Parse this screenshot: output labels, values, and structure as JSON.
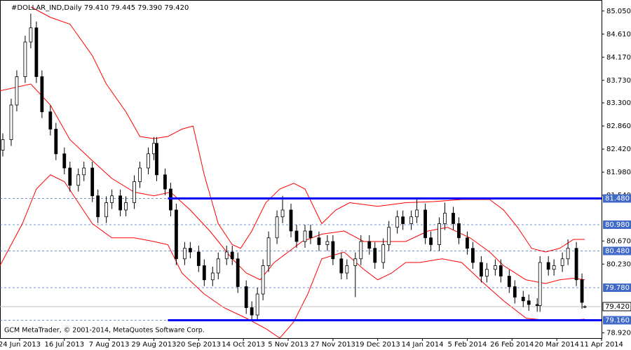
{
  "chart_data": {
    "type": "candlestick",
    "title": "#DOLLAR_IND,Daily  79.410 79.445 79.390 79.420",
    "footer": "GCM MetaTrader, © 2001-2014, MetaQuotes Software Corp.",
    "x": [
      -6,
      -3,
      -1,
      2,
      4,
      6,
      8,
      11,
      13,
      16,
      18,
      21,
      23,
      26,
      28,
      31,
      33,
      36,
      38,
      41,
      43,
      46,
      48,
      49,
      52,
      54,
      56,
      59,
      61,
      64,
      66,
      69,
      71,
      74,
      76,
      78,
      81,
      83,
      85,
      87,
      89,
      92,
      94,
      97,
      99,
      102,
      104,
      107,
      110,
      112,
      115,
      117,
      120,
      122,
      125,
      127,
      130,
      132,
      135,
      137,
      140,
      142,
      145,
      147,
      150,
      152,
      155,
      157,
      160,
      162,
      165,
      167,
      170,
      172,
      175,
      177,
      180,
      182,
      185,
      186,
      189,
      191,
      194,
      196,
      199,
      201,
      202
    ],
    "open": [
      82.4,
      82.6,
      83.26,
      83.8,
      84.46,
      84.73,
      83.8,
      83.13,
      82.8,
      82.33,
      82.06,
      81.73,
      81.93,
      82.06,
      81.53,
      81.13,
      81.4,
      81.53,
      81.26,
      81.4,
      81.8,
      82.06,
      82.33,
      82.53,
      81.93,
      81.66,
      81.26,
      80.33,
      80.53,
      80.46,
      80.2,
      79.93,
      80.06,
      80.33,
      80.46,
      80.33,
      79.8,
      79.4,
      79.26,
      79.66,
      80.2,
      80.73,
      81.13,
      81.26,
      80.86,
      80.66,
      80.86,
      80.73,
      80.6,
      80.66,
      80.33,
      80.06,
      80.2,
      80.33,
      80.66,
      80.53,
      80.26,
      80.6,
      80.93,
      81.13,
      81.0,
      81.13,
      81.26,
      80.73,
      80.6,
      81.0,
      81.2,
      81.0,
      80.73,
      80.53,
      80.26,
      80.0,
      80.13,
      80.2,
      80.0,
      79.8,
      79.6,
      79.53,
      79.46,
      79.44,
      80.26,
      80.13,
      80.2,
      80.33,
      80.53,
      79.93,
      79.41
    ],
    "high": [
      82.72,
      83.38,
      83.92,
      84.58,
      85.0,
      84.85,
      83.92,
      83.25,
      82.92,
      82.45,
      82.18,
      82.05,
      82.18,
      82.18,
      81.65,
      81.52,
      81.65,
      81.65,
      81.52,
      81.92,
      82.18,
      82.45,
      82.65,
      82.65,
      82.05,
      81.78,
      81.38,
      80.65,
      80.65,
      80.58,
      80.32,
      80.18,
      80.45,
      80.58,
      80.58,
      80.45,
      79.92,
      79.52,
      79.78,
      80.32,
      80.85,
      81.25,
      81.53,
      81.38,
      80.98,
      80.98,
      80.98,
      80.85,
      80.78,
      80.78,
      80.45,
      80.32,
      80.45,
      80.78,
      80.78,
      80.65,
      80.72,
      81.05,
      81.25,
      81.25,
      81.25,
      81.48,
      81.38,
      80.85,
      81.12,
      81.4,
      81.32,
      81.12,
      80.85,
      80.65,
      80.38,
      80.25,
      80.32,
      80.32,
      80.12,
      79.92,
      79.72,
      79.65,
      79.58,
      80.38,
      80.38,
      80.32,
      80.45,
      80.7,
      80.65,
      80.05,
      79.445
    ],
    "low": [
      82.28,
      82.48,
      83.14,
      83.68,
      84.34,
      83.68,
      83.01,
      82.68,
      82.21,
      81.94,
      81.61,
      81.61,
      81.81,
      81.41,
      81.01,
      81.01,
      81.28,
      81.14,
      81.14,
      81.28,
      81.68,
      81.94,
      82.21,
      81.81,
      81.54,
      81.14,
      80.21,
      80.21,
      80.34,
      80.08,
      79.81,
      79.81,
      79.94,
      80.21,
      80.21,
      79.68,
      79.28,
      79.14,
      79.14,
      79.54,
      80.08,
      80.61,
      81.01,
      80.74,
      80.54,
      80.54,
      80.61,
      80.48,
      80.48,
      80.21,
      79.94,
      79.94,
      79.6,
      80.21,
      80.41,
      80.14,
      80.14,
      80.48,
      80.81,
      80.88,
      80.88,
      81.01,
      80.61,
      80.48,
      80.48,
      80.88,
      80.88,
      80.61,
      80.41,
      80.14,
      79.88,
      79.88,
      80.01,
      79.88,
      79.68,
      79.48,
      79.41,
      79.34,
      79.32,
      79.32,
      80.01,
      80.01,
      80.08,
      80.21,
      79.81,
      79.38,
      79.39
    ],
    "close": [
      82.6,
      83.26,
      83.8,
      84.46,
      84.73,
      83.8,
      83.13,
      82.8,
      82.33,
      82.06,
      81.73,
      81.93,
      82.06,
      81.53,
      81.13,
      81.4,
      81.53,
      81.26,
      81.4,
      81.8,
      82.06,
      82.33,
      82.53,
      81.93,
      81.66,
      81.26,
      80.33,
      80.53,
      80.46,
      80.2,
      79.93,
      80.06,
      80.33,
      80.46,
      80.33,
      79.8,
      79.4,
      79.26,
      79.66,
      80.2,
      80.73,
      81.13,
      81.26,
      80.86,
      80.66,
      80.86,
      80.73,
      80.6,
      80.66,
      80.33,
      80.06,
      80.2,
      80.33,
      80.66,
      80.53,
      80.26,
      80.6,
      80.93,
      81.13,
      81.0,
      81.13,
      81.26,
      80.73,
      80.6,
      81.0,
      81.2,
      81.0,
      80.73,
      80.53,
      80.26,
      80.0,
      80.13,
      80.2,
      80.0,
      79.8,
      79.6,
      79.53,
      79.46,
      79.44,
      80.26,
      80.13,
      80.2,
      80.33,
      80.53,
      79.93,
      79.5,
      79.42
    ],
    "bands": [
      {
        "color": "#ff0000",
        "x": [
          4,
          11,
          18,
          26,
          31,
          38,
          43,
          48,
          53,
          58,
          62,
          66,
          71,
          76,
          79,
          83,
          88,
          93,
          98,
          102,
          105,
          108,
          113,
          118,
          128,
          138,
          148,
          158,
          168,
          173,
          178,
          183,
          188,
          193,
          198,
          202
        ],
        "values": [
          85.13,
          84.93,
          84.8,
          84.2,
          83.66,
          83.13,
          82.66,
          82.62,
          82.66,
          82.8,
          82.86,
          81.93,
          81.0,
          80.6,
          80.53,
          80.86,
          81.4,
          81.66,
          81.77,
          81.66,
          81.33,
          81.0,
          81.26,
          81.4,
          81.33,
          81.4,
          81.42,
          81.46,
          81.46,
          81.26,
          80.93,
          80.53,
          80.46,
          80.53,
          80.7,
          80.7
        ]
      },
      {
        "color": "#ff0000",
        "x": [
          -7,
          4,
          11,
          18,
          26,
          33,
          41,
          48,
          54,
          61,
          68,
          76,
          81,
          86,
          91,
          96,
          101,
          108,
          116,
          123,
          131,
          138,
          146,
          153,
          161,
          168,
          173,
          181,
          188,
          193,
          198,
          202
        ],
        "values": [
          83.53,
          83.66,
          83.26,
          82.6,
          82.2,
          81.86,
          81.6,
          81.53,
          81.6,
          81.26,
          80.86,
          80.33,
          80.06,
          79.93,
          80.26,
          80.46,
          80.66,
          80.8,
          80.86,
          80.66,
          80.66,
          80.66,
          80.86,
          80.93,
          80.73,
          80.46,
          80.2,
          79.93,
          79.86,
          79.93,
          79.96,
          79.93
        ]
      },
      {
        "color": "#ff0000",
        "x": [
          -7,
          1,
          6,
          11,
          16,
          21,
          26,
          33,
          41,
          48,
          53,
          58,
          66,
          73,
          81,
          88,
          93,
          98,
          103,
          108,
          116,
          123,
          128,
          133,
          138,
          143,
          151,
          158,
          166,
          173,
          181,
          188,
          196,
          202
        ],
        "values": [
          80.2,
          81.0,
          81.66,
          81.93,
          81.8,
          81.4,
          81.0,
          80.73,
          80.73,
          80.66,
          80.6,
          80.06,
          79.66,
          79.4,
          79.2,
          79.0,
          78.82,
          79.13,
          79.66,
          80.33,
          80.46,
          80.13,
          79.93,
          80.06,
          80.26,
          80.26,
          80.33,
          80.26,
          79.86,
          79.53,
          79.2,
          79.16,
          79.16,
          79.18
        ]
      }
    ],
    "trendlines": [
      {
        "color": "#0000ff",
        "x": [
          53,
          208
        ],
        "values": [
          81.48,
          81.48
        ]
      },
      {
        "color": "#0000ff",
        "x": [
          53,
          208
        ],
        "values": [
          79.16,
          79.16
        ]
      }
    ],
    "levels": [
      {
        "value": 81.48,
        "label": "81.480"
      },
      {
        "value": 80.98,
        "label": "80.980"
      },
      {
        "value": 80.48,
        "label": "80.480"
      },
      {
        "value": 79.78,
        "label": "79.780"
      },
      {
        "value": 79.16,
        "label": "79.160"
      }
    ],
    "last": {
      "value": 79.42,
      "label": "79.420"
    },
    "xlim": [
      -7,
      208
    ],
    "ylim": [
      78.82,
      85.26
    ],
    "yticks": [
      {
        "value": 85.05,
        "label": "85.050"
      },
      {
        "value": 84.61,
        "label": "84.610"
      },
      {
        "value": 84.17,
        "label": "84.170"
      },
      {
        "value": 83.73,
        "label": "83.730"
      },
      {
        "value": 83.3,
        "label": "83.300"
      },
      {
        "value": 82.86,
        "label": "82.860"
      },
      {
        "value": 82.42,
        "label": "82.420"
      },
      {
        "value": 81.98,
        "label": "81.980"
      },
      {
        "value": 81.54,
        "label": "81.540"
      },
      {
        "value": 80.67,
        "label": "80.670"
      },
      {
        "value": 80.23,
        "label": "80.230"
      },
      {
        "value": 78.92,
        "label": "78.920"
      }
    ],
    "xticks": [
      {
        "value": 0,
        "label": "24 Jun 2013"
      },
      {
        "value": 16,
        "label": "16 Jul 2013"
      },
      {
        "value": 32,
        "label": "7 Aug 2013"
      },
      {
        "value": 48,
        "label": "29 Aug 2013"
      },
      {
        "value": 64,
        "label": "20 Sep 2013"
      },
      {
        "value": 80,
        "label": "14 Oct 2013"
      },
      {
        "value": 96,
        "label": "5 Nov 2013"
      },
      {
        "value": 112,
        "label": "27 Nov 2013"
      },
      {
        "value": 128,
        "label": "19 Dec 2013"
      },
      {
        "value": 144,
        "label": "14 Jan 2014"
      },
      {
        "value": 160,
        "label": "5 Feb 2014"
      },
      {
        "value": 176,
        "label": "26 Feb 2014"
      },
      {
        "value": 192,
        "label": "20 Mar 2014"
      },
      {
        "value": 208,
        "label": "11 Apr 2014"
      }
    ]
  }
}
